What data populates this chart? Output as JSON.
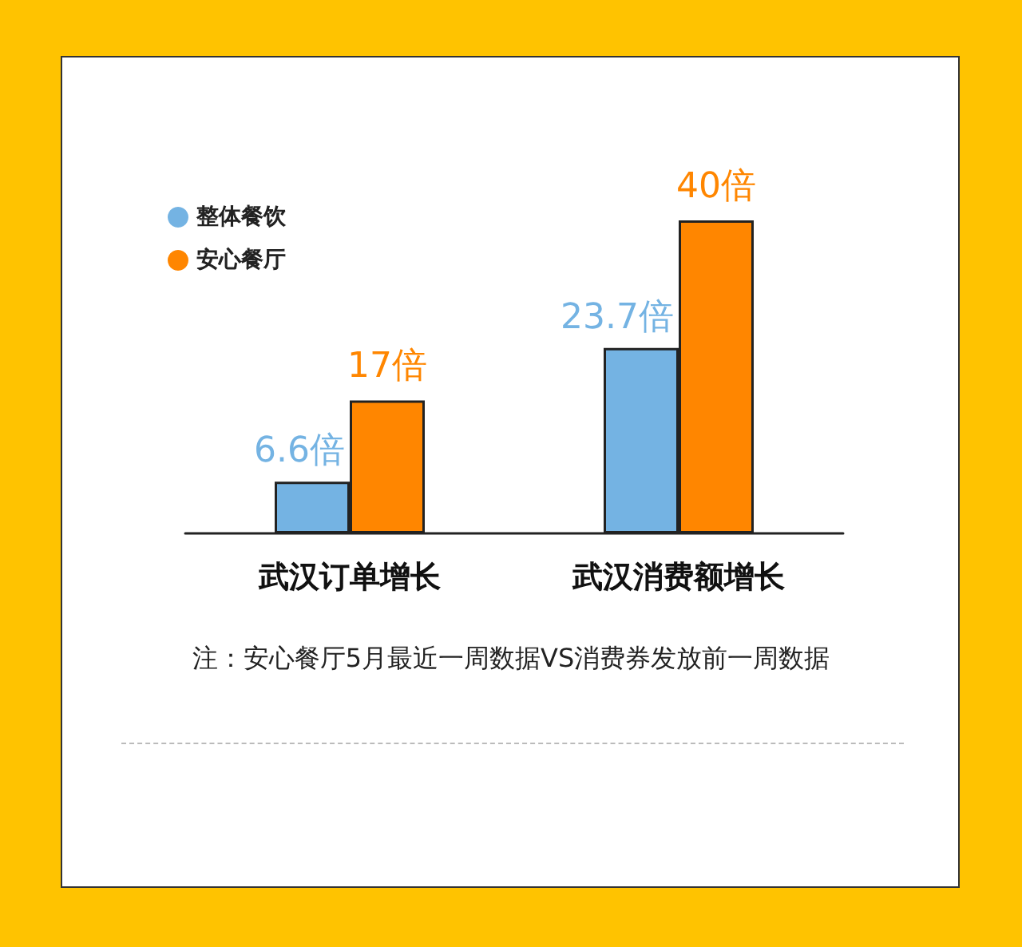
{
  "chart_data": {
    "type": "bar",
    "categories": [
      "武汉订单增长",
      "武汉消费额增长"
    ],
    "series": [
      {
        "name": "整体餐饮",
        "color": "#74b3e3",
        "values": [
          6.6,
          23.7
        ],
        "value_labels": [
          "6.6倍",
          "23.7倍"
        ]
      },
      {
        "name": "安心餐厅",
        "color": "#ff8600",
        "values": [
          17,
          40
        ],
        "value_labels": [
          "17倍",
          "40倍"
        ]
      }
    ],
    "legend": "top left",
    "grid": false,
    "annotations": [
      "注：安心餐厅5月最近一周数据VS消费券发放前一周数据"
    ]
  }
}
